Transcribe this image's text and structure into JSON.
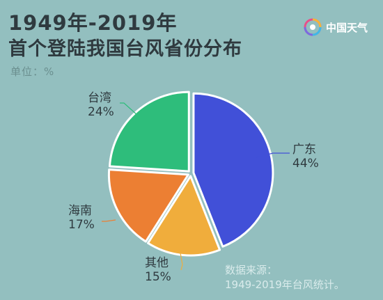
{
  "title": {
    "line1": "1949年-2019年",
    "line2": "首个登陆我国台风省份分布"
  },
  "unit_label": "单位：%",
  "brand": {
    "name": "中国天气",
    "logo_icon": "spiral-logo-icon"
  },
  "source": {
    "line1": "数据来源：",
    "line2": "1949-2019年台风统计。"
  },
  "chart_data": {
    "type": "pie",
    "title": "1949年-2019年 首个登陆我国台风省份分布",
    "unit": "%",
    "slices": [
      {
        "name": "广东",
        "value": 44,
        "label": "44%",
        "color": "#4150d8"
      },
      {
        "name": "其他",
        "value": 15,
        "label": "15%",
        "color": "#f0ad3c"
      },
      {
        "name": "海南",
        "value": 17,
        "label": "17%",
        "color": "#ec7f33"
      },
      {
        "name": "台湾",
        "value": 24,
        "label": "24%",
        "color": "#2ebd7b"
      }
    ],
    "legend": "none"
  }
}
